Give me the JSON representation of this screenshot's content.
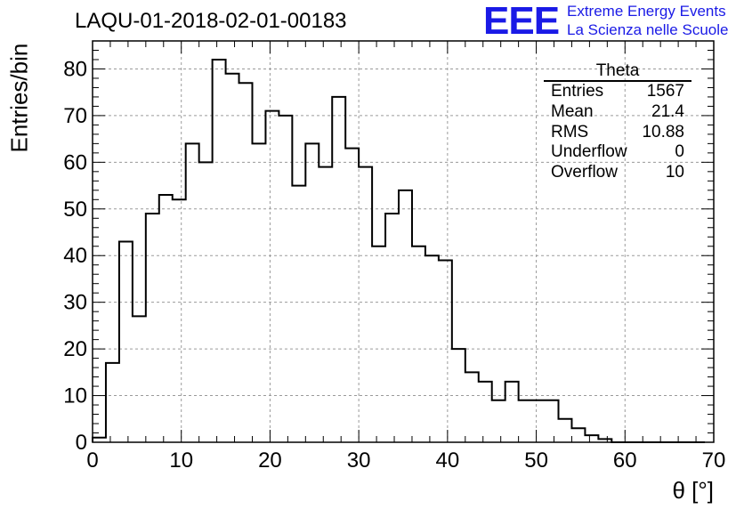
{
  "title": "LAQU-01-2018-02-01-00183",
  "logo": {
    "mark": "EEE",
    "line1": "Extreme Energy Events",
    "line2": "La Scienza nelle Scuole",
    "color": "#1a1ae6"
  },
  "stats": {
    "name": "Theta",
    "rows": [
      {
        "label": "Entries",
        "value": "1567"
      },
      {
        "label": "Mean",
        "value": "21.4"
      },
      {
        "label": "RMS",
        "value": "10.88"
      },
      {
        "label": "Underflow",
        "value": "0"
      },
      {
        "label": "Overflow",
        "value": "10"
      }
    ]
  },
  "chart_data": {
    "type": "histogram",
    "xlabel": "θ [°]",
    "ylabel": "Entries/bin",
    "xlim": [
      0,
      70
    ],
    "ylim": [
      0,
      86
    ],
    "xticks": [
      0,
      10,
      20,
      30,
      40,
      50,
      60,
      70
    ],
    "yticks": [
      0,
      10,
      20,
      30,
      40,
      50,
      60,
      70,
      80
    ],
    "grid": true,
    "bin_width": 1.5,
    "bin_edges_start": 0,
    "values": [
      1,
      17,
      43,
      27,
      49,
      53,
      52,
      64,
      60,
      82,
      79,
      77,
      64,
      71,
      70,
      55,
      64,
      59,
      74,
      63,
      59,
      42,
      49,
      54,
      42,
      40,
      39,
      20,
      15,
      13,
      9,
      13,
      9,
      9,
      9,
      5,
      3,
      1.5,
      0.7,
      0,
      0,
      0,
      0,
      0,
      0,
      0
    ]
  }
}
